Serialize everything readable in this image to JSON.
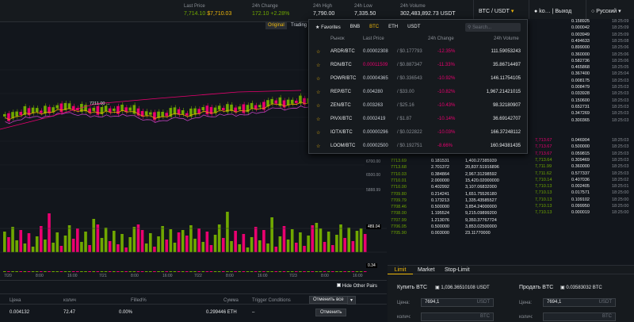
{
  "topbar": {
    "last_price_label": "Last Price",
    "last_price_btc": "7,714.10",
    "last_price_usd": "$7,710.03",
    "change_label": "24h Change",
    "change_value": "172.10",
    "change_pct": "+2.28%",
    "high_label": "24h High",
    "high_value": "7,790.00",
    "low_label": "24h Low",
    "low_value": "7,335.50",
    "volume_label": "24h Volume",
    "volume_value": "302,483,892.73 USDT",
    "pair": "BTC / USDT",
    "user": "ko…",
    "logout": "Выход",
    "language": "Русский"
  },
  "chart": {
    "tab_original": "Original",
    "tab_trading": "Trading",
    "price_marker": "7211.00",
    "y_ticks": [
      "6700.00",
      "6500.00",
      "5888.99"
    ],
    "volume_label": "489.04",
    "macd_label": "0.34",
    "x_ticks": [
      "7/20",
      "8:00",
      "16:00",
      "7/21",
      "8:00",
      "16:00",
      "7/22",
      "8:00",
      "16:00",
      "7/23",
      "8:00",
      "16:00"
    ],
    "candle_ups": [
      1,
      0,
      1,
      1,
      0,
      1,
      0,
      1,
      1,
      0,
      1,
      0,
      1,
      1,
      0,
      1,
      1,
      0,
      0,
      1,
      1,
      0,
      1,
      0,
      1,
      1,
      0,
      1,
      0,
      1,
      0,
      1,
      1,
      0,
      0,
      1,
      1,
      0,
      1,
      1,
      0,
      1,
      1,
      0,
      1,
      0,
      1,
      1,
      0,
      1,
      0,
      0,
      1,
      1,
      0,
      1,
      1,
      0,
      1,
      0,
      1,
      1,
      0,
      1,
      0,
      1,
      1,
      0,
      1,
      0,
      1,
      1,
      0,
      1,
      0,
      1,
      0,
      1,
      1,
      0,
      1,
      0,
      1,
      1,
      0,
      1,
      0,
      1,
      1,
      0
    ],
    "colors": {
      "up": "#70a800",
      "down": "#ea0070",
      "ma1": "#e6a800",
      "ma2": "#c040c0"
    }
  },
  "popup": {
    "tabs": [
      "Favorites",
      "BNB",
      "BTC",
      "ETH",
      "USDT"
    ],
    "active_tab": "BTC",
    "search_placeholder": "Search...",
    "headers": {
      "market": "Рынок",
      "price": "Last Price",
      "change": "24h Change",
      "volume": "24h Volume"
    },
    "rows": [
      {
        "pair": "ARDR/BTC",
        "price": "0.00002308",
        "usd": "/ $0.177793",
        "change": "-12.35%",
        "volume": "111.59053243"
      },
      {
        "pair": "RDN/BTC",
        "price": "0.00011509",
        "usd": "/ $0.887347",
        "change": "-11.33%",
        "volume": "35.86714497"
      },
      {
        "pair": "POWR/BTC",
        "price": "0.00004365",
        "usd": "/ $0.336543",
        "change": "-10.92%",
        "volume": "146.11754105"
      },
      {
        "pair": "REP/BTC",
        "price": "0.004280",
        "usd": "/ $33.00",
        "change": "-10.82%",
        "volume": "1,967.21421015"
      },
      {
        "pair": "ZEN/BTC",
        "price": "0.003263",
        "usd": "/ $25.16",
        "change": "-10.43%",
        "volume": "98.32180907"
      },
      {
        "pair": "PIVX/BTC",
        "price": "0.0002419",
        "usd": "/ $1.87",
        "change": "-10.14%",
        "volume": "36.69142707"
      },
      {
        "pair": "IOTX/BTC",
        "price": "0.00000296",
        "usd": "/ $0.022822",
        "change": "-10.03%",
        "volume": "166.37248112"
      },
      {
        "pair": "LOOM/BTC",
        "price": "0.00002500",
        "usd": "/ $0.192751",
        "change": "-8.66%",
        "volume": "160.94381435"
      }
    ]
  },
  "trades_top": [
    {
      "amount": "0.158925",
      "time": "18:25:09"
    },
    {
      "amount": "0.000042",
      "time": "18:25:09"
    },
    {
      "amount": "0.003949",
      "time": "18:25:09"
    },
    {
      "amount": "0.494633",
      "time": "18:25:08"
    },
    {
      "amount": "0.899000",
      "time": "18:25:06"
    },
    {
      "amount": "0.360000",
      "time": "18:25:06"
    },
    {
      "amount": "0.582736",
      "time": "18:25:06"
    },
    {
      "amount": "0.465868",
      "time": "18:25:05"
    },
    {
      "amount": "0.367400",
      "time": "18:25:04"
    },
    {
      "amount": "0.008175",
      "time": "18:25:03"
    },
    {
      "amount": "0.008479",
      "time": "18:25:03"
    },
    {
      "amount": "0.033928",
      "time": "18:25:03"
    },
    {
      "amount": "0.150600",
      "time": "18:25:03"
    },
    {
      "amount": "0.652731",
      "time": "18:25:03"
    },
    {
      "amount": "0.347269",
      "time": "18:25:03"
    },
    {
      "amount": "0.300365",
      "time": "18:25:03"
    }
  ],
  "orderbook_bids": [
    {
      "price": "7713.69",
      "amount": "0.181531",
      "total": "1,400.27385939"
    },
    {
      "price": "7713.68",
      "amount": "2.701372",
      "total": "20,837.51916896"
    },
    {
      "price": "7710.03",
      "amount": "0.384864",
      "total": "2,967.31298592"
    },
    {
      "price": "7710.01",
      "amount": "2.000000",
      "total": "15,420.02000000"
    },
    {
      "price": "7710.00",
      "amount": "0.402992",
      "total": "3,107.06832000"
    },
    {
      "price": "7709.80",
      "amount": "0.214241",
      "total": "1,651.75526180"
    },
    {
      "price": "7709.79",
      "amount": "0.173213",
      "total": "1,335.43585527"
    },
    {
      "price": "7708.46",
      "amount": "0.500000",
      "total": "3,854.24000000"
    },
    {
      "price": "7708.00",
      "amount": "1.195524",
      "total": "9,215.09899200"
    },
    {
      "price": "7707.99",
      "amount": "1.213076",
      "total": "9,350.37767724"
    },
    {
      "price": "7706.05",
      "amount": "0.500000",
      "total": "3,853.02500000"
    },
    {
      "price": "7705.90",
      "amount": "0.003000",
      "total": "23.11770000"
    }
  ],
  "trades_bottom": [
    {
      "price": "7,713.67",
      "amount": "0.046904",
      "time": "18:25:03"
    },
    {
      "price": "7,713.67",
      "amount": "0.500000",
      "time": "18:25:03"
    },
    {
      "price": "7,713.67",
      "amount": "0.059815",
      "time": "18:25:03"
    },
    {
      "price": "7,713.64",
      "amount": "0.309469",
      "time": "18:25:03"
    },
    {
      "price": "7,711.99",
      "amount": "0.360000",
      "time": "18:25:03"
    },
    {
      "price": "7,711.62",
      "amount": "0.577337",
      "time": "18:25:03"
    },
    {
      "price": "7,710.14",
      "amount": "0.407036",
      "time": "18:25:02"
    },
    {
      "price": "7,710.13",
      "amount": "0.002405",
      "time": "18:25:01"
    },
    {
      "price": "7,710.13",
      "amount": "0.017571",
      "time": "18:25:00"
    },
    {
      "price": "7,710.13",
      "amount": "0.109102",
      "time": "18:25:00"
    },
    {
      "price": "7,710.13",
      "amount": "0.099950",
      "time": "18:25:00"
    },
    {
      "price": "7,710.13",
      "amount": "0.000019",
      "time": "18:25:00"
    }
  ],
  "bottom": {
    "hide_label": "Hide Other Pairs",
    "headers": [
      "Цена",
      "колич",
      "Filled%",
      "Сумма",
      "Trigger Conditions"
    ],
    "cancel_all": "Отменить все",
    "row": {
      "price": "0.004132",
      "amount": "72.47",
      "filled": "0.00%",
      "total": "0.299446 ETH",
      "trigger": "–",
      "cancel": "Отменить"
    }
  },
  "trade": {
    "tabs": [
      "Limit",
      "Market",
      "Stop-Limit"
    ],
    "buy_title": "Купить BTC",
    "buy_balance": "1,036.36510108 USDT",
    "sell_title": "Продать BTC",
    "sell_balance": "0.03583032 BTC",
    "price_label": "Цена:",
    "amount_label": "колич:",
    "buy_price": "7694,1",
    "sell_price": "7694,1",
    "price_unit": "USDT",
    "amount_unit": "BTC"
  }
}
